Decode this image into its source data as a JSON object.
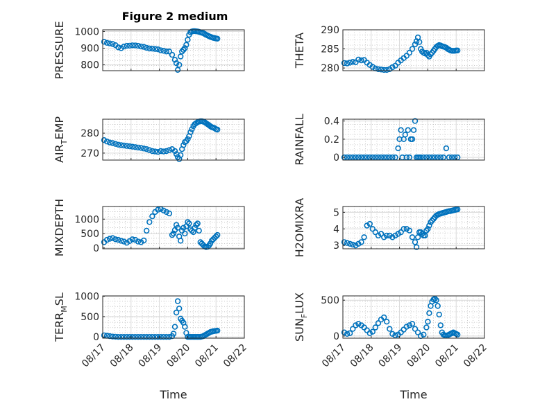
{
  "figure": {
    "title": "Figure 2 medium",
    "xlabel": "Time",
    "x_ticks": [
      "08/17",
      "08/18",
      "08/19",
      "08/20",
      "08/21",
      "08/22"
    ],
    "marker_color": "#0072BD",
    "grid_color": "#b8b8b8"
  },
  "chart_data": [
    {
      "type": "scatter",
      "ylabel": "PRESSURE",
      "ylabel_parts": [
        "PRESSURE"
      ],
      "xlim": [
        0,
        5
      ],
      "ylim": [
        765,
        1010
      ],
      "yticks": [
        800,
        900,
        1000
      ],
      "x": [
        0.05,
        0.15,
        0.25,
        0.35,
        0.45,
        0.55,
        0.65,
        0.75,
        0.85,
        0.95,
        1.05,
        1.15,
        1.25,
        1.35,
        1.45,
        1.55,
        1.65,
        1.75,
        1.85,
        1.95,
        2.05,
        2.15,
        2.25,
        2.35,
        2.45,
        2.55,
        2.6,
        2.65,
        2.7,
        2.75,
        2.8,
        2.85,
        2.9,
        2.95,
        3.0,
        3.05,
        3.1,
        3.15,
        3.2,
        3.25,
        3.3,
        3.35,
        3.4,
        3.45,
        3.5,
        3.55,
        3.6,
        3.65,
        3.7,
        3.75,
        3.8,
        3.85,
        3.9,
        3.95,
        4.0,
        4.05
      ],
      "y": [
        938,
        932,
        928,
        925,
        918,
        905,
        900,
        910,
        914,
        915,
        917,
        916,
        914,
        910,
        908,
        902,
        898,
        897,
        895,
        893,
        887,
        884,
        880,
        880,
        860,
        830,
        810,
        770,
        800,
        850,
        880,
        890,
        900,
        920,
        950,
        980,
        995,
        1000,
        1002,
        1002,
        1001,
        1000,
        998,
        995,
        992,
        990,
        985,
        980,
        976,
        972,
        968,
        965,
        962,
        960,
        958,
        957
      ]
    },
    {
      "type": "scatter",
      "ylabel": "THETA",
      "ylabel_parts": [
        "THETA"
      ],
      "xlim": [
        0,
        5
      ],
      "ylim": [
        279.3,
        290
      ],
      "yticks": [
        280,
        285,
        290
      ],
      "x": [
        0.05,
        0.15,
        0.25,
        0.35,
        0.45,
        0.55,
        0.65,
        0.75,
        0.85,
        0.95,
        1.05,
        1.15,
        1.25,
        1.35,
        1.45,
        1.55,
        1.65,
        1.75,
        1.85,
        1.95,
        2.05,
        2.15,
        2.25,
        2.35,
        2.45,
        2.55,
        2.6,
        2.65,
        2.7,
        2.75,
        2.8,
        2.85,
        2.9,
        2.95,
        3.0,
        3.05,
        3.1,
        3.15,
        3.2,
        3.25,
        3.3,
        3.35,
        3.4,
        3.45,
        3.5,
        3.55,
        3.6,
        3.65,
        3.7,
        3.75,
        3.8,
        3.85,
        3.9,
        3.95,
        4.0,
        4.05
      ],
      "y": [
        281.3,
        281.2,
        281.4,
        281.6,
        281.5,
        282.2,
        282.0,
        282.1,
        281.4,
        280.8,
        280.3,
        279.9,
        279.7,
        279.6,
        279.5,
        279.5,
        279.7,
        280.2,
        280.6,
        281.4,
        282.0,
        282.6,
        283.2,
        284.0,
        285.0,
        286.2,
        287.0,
        288.0,
        286.8,
        285.0,
        284.3,
        284.0,
        283.8,
        284.0,
        283.4,
        283.0,
        283.6,
        284.0,
        284.5,
        285.0,
        285.5,
        285.8,
        286.0,
        285.9,
        285.7,
        285.6,
        285.5,
        285.3,
        285.0,
        284.8,
        284.6,
        284.5,
        284.5,
        284.5,
        284.6,
        284.6
      ]
    },
    {
      "type": "scatter",
      "ylabel": "AIR_TEMP",
      "ylabel_parts": [
        "AIR",
        "T",
        "EMP"
      ],
      "xlim": [
        0,
        5
      ],
      "ylim": [
        266.5,
        287
      ],
      "yticks": [
        270,
        280
      ],
      "x": [
        0.05,
        0.15,
        0.25,
        0.35,
        0.45,
        0.55,
        0.65,
        0.75,
        0.85,
        0.95,
        1.05,
        1.15,
        1.25,
        1.35,
        1.45,
        1.55,
        1.65,
        1.75,
        1.85,
        1.95,
        2.05,
        2.15,
        2.25,
        2.35,
        2.45,
        2.55,
        2.6,
        2.65,
        2.7,
        2.75,
        2.8,
        2.85,
        2.9,
        2.95,
        3.0,
        3.05,
        3.1,
        3.15,
        3.2,
        3.25,
        3.3,
        3.35,
        3.4,
        3.45,
        3.5,
        3.55,
        3.6,
        3.65,
        3.7,
        3.75,
        3.8,
        3.85,
        3.9,
        3.95,
        4.0,
        4.05
      ],
      "y": [
        276.5,
        275.8,
        275.3,
        275.0,
        274.6,
        274.2,
        274.0,
        273.8,
        273.6,
        273.4,
        273.2,
        273.0,
        272.8,
        272.6,
        272.3,
        272.0,
        271.5,
        271.0,
        270.8,
        270.6,
        271.0,
        270.8,
        271.0,
        271.5,
        272.0,
        271.0,
        269.5,
        268.0,
        267.0,
        269.0,
        272.0,
        274.0,
        275.5,
        276.0,
        277.0,
        278.5,
        280.5,
        282.0,
        283.5,
        284.5,
        285.0,
        285.5,
        285.8,
        286.0,
        286.0,
        285.8,
        285.5,
        285.0,
        284.5,
        284.0,
        283.5,
        283.0,
        282.8,
        282.5,
        282.0,
        281.8
      ]
    },
    {
      "type": "scatter",
      "ylabel": "RAINFALL",
      "ylabel_parts": [
        "RAINFALL"
      ],
      "xlim": [
        0,
        5
      ],
      "ylim": [
        -0.03,
        0.42
      ],
      "yticks": [
        0,
        0.2,
        0.4
      ],
      "x": [
        0.05,
        0.15,
        0.25,
        0.35,
        0.45,
        0.55,
        0.65,
        0.75,
        0.85,
        0.95,
        1.05,
        1.15,
        1.25,
        1.35,
        1.45,
        1.55,
        1.65,
        1.75,
        1.85,
        1.95,
        2.0,
        2.05,
        2.1,
        2.15,
        2.2,
        2.25,
        2.3,
        2.35,
        2.4,
        2.45,
        2.5,
        2.55,
        2.6,
        2.65,
        2.7,
        2.75,
        2.85,
        2.95,
        3.05,
        3.15,
        3.25,
        3.35,
        3.45,
        3.55,
        3.65,
        3.75,
        3.85,
        3.95,
        4.05
      ],
      "y": [
        0,
        0,
        0,
        0,
        0,
        0,
        0,
        0,
        0,
        0,
        0,
        0,
        0,
        0,
        0,
        0,
        0,
        0,
        0,
        0.1,
        0.2,
        0.3,
        0,
        0.2,
        0.25,
        0,
        0.3,
        0,
        0.2,
        0.2,
        0.3,
        0.4,
        0,
        0,
        0,
        0,
        0,
        0,
        0,
        0,
        0,
        0,
        0,
        0,
        0.1,
        0,
        0,
        0,
        0
      ]
    },
    {
      "type": "scatter",
      "ylabel": "MIXDEPTH",
      "ylabel_parts": [
        "MIXDEPTH"
      ],
      "xlim": [
        0,
        5
      ],
      "ylim": [
        -30,
        1440
      ],
      "yticks": [
        0,
        500,
        1000
      ],
      "x": [
        0.05,
        0.15,
        0.25,
        0.35,
        0.45,
        0.55,
        0.65,
        0.75,
        0.85,
        0.95,
        1.05,
        1.15,
        1.25,
        1.35,
        1.45,
        1.55,
        1.65,
        1.75,
        1.85,
        1.95,
        2.05,
        2.15,
        2.25,
        2.35,
        2.45,
        2.5,
        2.55,
        2.6,
        2.65,
        2.7,
        2.75,
        2.8,
        2.85,
        2.9,
        2.95,
        3.0,
        3.05,
        3.1,
        3.15,
        3.2,
        3.25,
        3.3,
        3.35,
        3.4,
        3.45,
        3.5,
        3.55,
        3.6,
        3.65,
        3.7,
        3.75,
        3.8,
        3.85,
        3.9,
        3.95,
        4.0,
        4.05
      ],
      "y": [
        200,
        280,
        320,
        340,
        300,
        280,
        250,
        220,
        180,
        240,
        300,
        280,
        220,
        200,
        260,
        600,
        900,
        1100,
        1250,
        1330,
        1350,
        1300,
        1250,
        1200,
        450,
        500,
        620,
        800,
        700,
        400,
        250,
        600,
        700,
        500,
        750,
        900,
        850,
        650,
        600,
        550,
        700,
        800,
        850,
        600,
        200,
        150,
        100,
        50,
        30,
        40,
        80,
        150,
        250,
        300,
        350,
        400,
        450
      ]
    },
    {
      "type": "scatter",
      "ylabel": "H2OMIXRA",
      "ylabel_parts": [
        "H2OMIXRA"
      ],
      "xlim": [
        0,
        5
      ],
      "ylim": [
        2.8,
        5.35
      ],
      "yticks": [
        3,
        4,
        5
      ],
      "x": [
        0.05,
        0.15,
        0.25,
        0.35,
        0.45,
        0.55,
        0.65,
        0.75,
        0.85,
        0.95,
        1.05,
        1.15,
        1.25,
        1.35,
        1.45,
        1.55,
        1.65,
        1.75,
        1.85,
        1.95,
        2.05,
        2.15,
        2.25,
        2.35,
        2.45,
        2.55,
        2.6,
        2.65,
        2.7,
        2.75,
        2.8,
        2.85,
        2.9,
        2.95,
        3.0,
        3.05,
        3.1,
        3.15,
        3.2,
        3.25,
        3.3,
        3.35,
        3.4,
        3.45,
        3.5,
        3.55,
        3.6,
        3.65,
        3.7,
        3.75,
        3.8,
        3.85,
        3.9,
        3.95,
        4.0,
        4.05
      ],
      "y": [
        3.2,
        3.15,
        3.1,
        3.05,
        3.0,
        3.1,
        3.2,
        3.5,
        4.2,
        4.3,
        4.0,
        3.8,
        3.6,
        3.7,
        3.5,
        3.6,
        3.6,
        3.5,
        3.6,
        3.7,
        3.8,
        4.0,
        4.0,
        3.9,
        3.5,
        3.2,
        2.9,
        3.5,
        3.8,
        3.8,
        3.7,
        3.6,
        3.6,
        3.9,
        4.0,
        4.2,
        4.4,
        4.5,
        4.6,
        4.7,
        4.8,
        4.85,
        4.9,
        4.92,
        4.95,
        4.97,
        5.0,
        5.02,
        5.05,
        5.07,
        5.08,
        5.1,
        5.12,
        5.14,
        5.16,
        5.18
      ]
    },
    {
      "type": "scatter",
      "ylabel": "TERR_MSL",
      "ylabel_parts": [
        "TERR",
        "M",
        "SL"
      ],
      "xlim": [
        0,
        5
      ],
      "ylim": [
        -30,
        1010
      ],
      "yticks": [
        0,
        500,
        1000
      ],
      "x": [
        0.05,
        0.15,
        0.25,
        0.35,
        0.45,
        0.55,
        0.65,
        0.75,
        0.85,
        0.95,
        1.05,
        1.15,
        1.25,
        1.35,
        1.45,
        1.55,
        1.65,
        1.75,
        1.85,
        1.95,
        2.05,
        2.15,
        2.25,
        2.35,
        2.45,
        2.5,
        2.55,
        2.6,
        2.65,
        2.7,
        2.75,
        2.8,
        2.85,
        2.9,
        2.95,
        3.0,
        3.05,
        3.1,
        3.15,
        3.2,
        3.25,
        3.3,
        3.35,
        3.4,
        3.45,
        3.5,
        3.55,
        3.6,
        3.65,
        3.7,
        3.75,
        3.8,
        3.85,
        3.9,
        3.95,
        4.0,
        4.05
      ],
      "y": [
        40,
        30,
        20,
        10,
        5,
        0,
        0,
        0,
        0,
        0,
        0,
        0,
        0,
        0,
        0,
        0,
        0,
        0,
        0,
        0,
        0,
        0,
        0,
        0,
        20,
        80,
        250,
        600,
        880,
        700,
        450,
        400,
        350,
        250,
        100,
        0,
        0,
        0,
        0,
        0,
        0,
        0,
        0,
        0,
        0,
        10,
        20,
        40,
        60,
        80,
        100,
        120,
        130,
        140,
        145,
        150,
        155
      ]
    },
    {
      "type": "scatter",
      "ylabel": "SUN_FLUX",
      "ylabel_parts": [
        "SUN",
        "F",
        "LUX"
      ],
      "xlim": [
        0,
        5
      ],
      "ylim": [
        -30,
        560
      ],
      "yticks": [
        0,
        500
      ],
      "x": [
        0.05,
        0.15,
        0.25,
        0.35,
        0.45,
        0.55,
        0.65,
        0.75,
        0.85,
        0.95,
        1.05,
        1.15,
        1.25,
        1.35,
        1.45,
        1.55,
        1.65,
        1.75,
        1.85,
        1.95,
        2.05,
        2.15,
        2.25,
        2.35,
        2.45,
        2.55,
        2.65,
        2.75,
        2.85,
        2.95,
        3.0,
        3.05,
        3.1,
        3.15,
        3.2,
        3.25,
        3.3,
        3.35,
        3.4,
        3.45,
        3.5,
        3.55,
        3.6,
        3.65,
        3.7,
        3.75,
        3.8,
        3.85,
        3.9,
        3.95,
        4.0,
        4.05
      ],
      "y": [
        50,
        30,
        40,
        100,
        150,
        170,
        150,
        120,
        80,
        40,
        60,
        120,
        180,
        230,
        260,
        200,
        100,
        30,
        10,
        20,
        50,
        90,
        130,
        150,
        170,
        100,
        50,
        0,
        20,
        120,
        200,
        320,
        420,
        480,
        510,
        520,
        500,
        420,
        300,
        150,
        50,
        20,
        10,
        5,
        10,
        20,
        30,
        40,
        50,
        40,
        30,
        20
      ]
    }
  ]
}
